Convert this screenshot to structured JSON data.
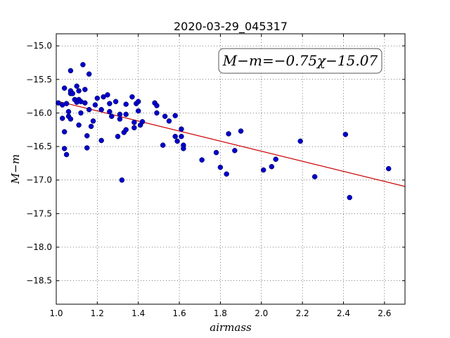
{
  "chart_data": {
    "type": "scatter",
    "title": "2020-03-29_045317",
    "xlabel": "airmass",
    "ylabel": "M−m",
    "xlim": [
      1.0,
      2.7
    ],
    "ylim": [
      -18.85,
      -14.82
    ],
    "y_inverted": true,
    "grid": true,
    "xticks": [
      "1.0",
      "1.2",
      "1.4",
      "1.6",
      "1.8",
      "2.0",
      "2.2",
      "2.4",
      "2.6"
    ],
    "yticks": [
      "−15.0",
      "−15.5",
      "−16.0",
      "−16.5",
      "−17.0",
      "−17.5",
      "−18.0",
      "−18.5"
    ],
    "annotation": "M−m=−0.75χ−15.07",
    "fit": {
      "slope": -0.75,
      "intercept": -15.07,
      "color": "#cc0000"
    },
    "point_color": "#0000cc",
    "points": [
      [
        1.01,
        -15.85
      ],
      [
        1.03,
        -16.08
      ],
      [
        1.03,
        -15.88
      ],
      [
        1.04,
        -15.63
      ],
      [
        1.04,
        -16.28
      ],
      [
        1.04,
        -16.53
      ],
      [
        1.05,
        -16.62
      ],
      [
        1.05,
        -15.86
      ],
      [
        1.06,
        -16.05
      ],
      [
        1.06,
        -15.98
      ],
      [
        1.07,
        -15.71
      ],
      [
        1.07,
        -16.09
      ],
      [
        1.07,
        -15.67
      ],
      [
        1.08,
        -15.71
      ],
      [
        1.07,
        -15.37
      ],
      [
        1.09,
        -15.8
      ],
      [
        1.1,
        -15.6
      ],
      [
        1.1,
        -15.84
      ],
      [
        1.11,
        -15.67
      ],
      [
        1.11,
        -15.8
      ],
      [
        1.11,
        -16.18
      ],
      [
        1.12,
        -16.0
      ],
      [
        1.12,
        -15.83
      ],
      [
        1.13,
        -15.28
      ],
      [
        1.14,
        -15.85
      ],
      [
        1.14,
        -15.65
      ],
      [
        1.15,
        -16.52
      ],
      [
        1.15,
        -16.34
      ],
      [
        1.16,
        -15.95
      ],
      [
        1.16,
        -15.42
      ],
      [
        1.17,
        -16.2
      ],
      [
        1.18,
        -16.12
      ],
      [
        1.19,
        -15.88
      ],
      [
        1.2,
        -15.78
      ],
      [
        1.22,
        -15.95
      ],
      [
        1.22,
        -16.41
      ],
      [
        1.23,
        -15.76
      ],
      [
        1.25,
        -15.73
      ],
      [
        1.26,
        -15.86
      ],
      [
        1.26,
        -15.98
      ],
      [
        1.27,
        -16.05
      ],
      [
        1.29,
        -15.83
      ],
      [
        1.3,
        -16.35
      ],
      [
        1.31,
        -16.09
      ],
      [
        1.31,
        -16.02
      ],
      [
        1.32,
        -17.0
      ],
      [
        1.33,
        -16.29
      ],
      [
        1.34,
        -16.25
      ],
      [
        1.34,
        -15.87
      ],
      [
        1.34,
        -16.02
      ],
      [
        1.37,
        -15.76
      ],
      [
        1.38,
        -16.22
      ],
      [
        1.38,
        -16.14
      ],
      [
        1.39,
        -15.86
      ],
      [
        1.4,
        -15.83
      ],
      [
        1.4,
        -15.97
      ],
      [
        1.41,
        -16.18
      ],
      [
        1.42,
        -16.13
      ],
      [
        1.48,
        -15.85
      ],
      [
        1.49,
        -15.89
      ],
      [
        1.49,
        -16.0
      ],
      [
        1.52,
        -16.48
      ],
      [
        1.53,
        -16.05
      ],
      [
        1.55,
        -16.12
      ],
      [
        1.58,
        -16.04
      ],
      [
        1.58,
        -16.35
      ],
      [
        1.59,
        -16.42
      ],
      [
        1.61,
        -16.35
      ],
      [
        1.61,
        -16.24
      ],
      [
        1.62,
        -16.48
      ],
      [
        1.62,
        -16.53
      ],
      [
        1.71,
        -16.7
      ],
      [
        1.78,
        -16.59
      ],
      [
        1.8,
        -16.81
      ],
      [
        1.83,
        -16.91
      ],
      [
        1.84,
        -16.31
      ],
      [
        1.87,
        -16.56
      ],
      [
        1.9,
        -16.27
      ],
      [
        2.01,
        -16.85
      ],
      [
        2.05,
        -16.8
      ],
      [
        2.07,
        -16.69
      ],
      [
        2.19,
        -16.42
      ],
      [
        2.26,
        -16.95
      ],
      [
        2.41,
        -16.32
      ],
      [
        2.43,
        -17.26
      ],
      [
        2.62,
        -16.83
      ]
    ]
  }
}
